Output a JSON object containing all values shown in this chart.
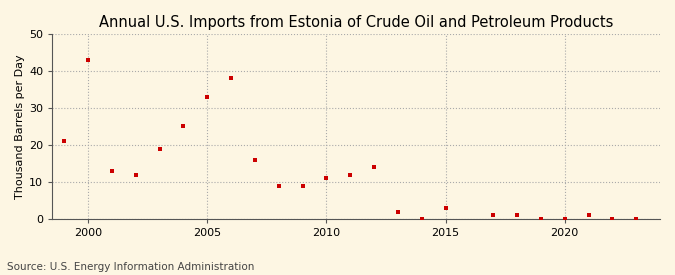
{
  "title": "Annual U.S. Imports from Estonia of Crude Oil and Petroleum Products",
  "ylabel": "Thousand Barrels per Day",
  "source": "Source: U.S. Energy Information Administration",
  "years": [
    1999,
    2000,
    2001,
    2002,
    2003,
    2004,
    2005,
    2006,
    2007,
    2008,
    2009,
    2010,
    2011,
    2012,
    2013,
    2014,
    2015,
    2017,
    2018,
    2019,
    2020,
    2021,
    2022,
    2023
  ],
  "values": [
    21,
    43,
    13,
    12,
    19,
    25,
    33,
    38,
    16,
    9,
    9,
    11,
    12,
    14,
    2,
    0,
    3,
    1,
    1,
    0,
    0,
    1,
    0,
    0
  ],
  "xlim": [
    1998.5,
    2024
  ],
  "ylim": [
    0,
    50
  ],
  "yticks": [
    0,
    10,
    20,
    30,
    40,
    50
  ],
  "xticks": [
    2000,
    2005,
    2010,
    2015,
    2020
  ],
  "marker_color": "#cc0000",
  "marker": "s",
  "marker_size": 3.5,
  "bg_color": "#fdf6e3",
  "plot_bg_color": "#fdf6e3",
  "grid_color": "#aaaaaa",
  "spine_color": "#555555",
  "title_fontsize": 10.5,
  "label_fontsize": 8,
  "tick_fontsize": 8,
  "source_fontsize": 7.5
}
